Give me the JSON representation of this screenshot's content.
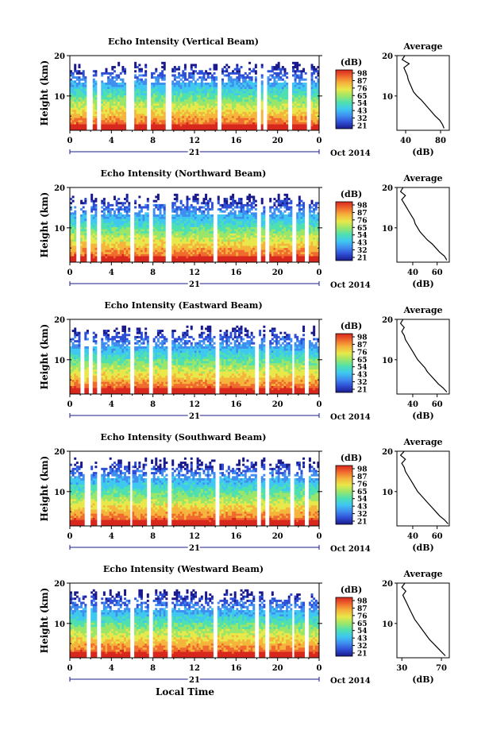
{
  "colors": {
    "axes": "#000000",
    "background": "#ffffff",
    "gap": "#ffffff",
    "profile_line": "#000000"
  },
  "colormap": [
    "#1a1a8c",
    "#2f4fd6",
    "#3f8ef0",
    "#3fc8f0",
    "#4fe0b0",
    "#9ae66a",
    "#e8e84a",
    "#f5b43c",
    "#f06a2e",
    "#d8281e"
  ],
  "chart_data": [
    {
      "type": "heatmap",
      "title": "Echo Intensity (Vertical Beam)",
      "ylabel": "Height (km)",
      "x_ticks": [
        "0",
        "4",
        "8",
        "12",
        "16",
        "20",
        "0"
      ],
      "date_label": "21",
      "date_suffix": "Oct 2014",
      "ylim": [
        1.5,
        20
      ],
      "y_ticks": [
        "20",
        "10"
      ],
      "colorbar": {
        "label": "(dB)",
        "ticks": [
          "98",
          "87",
          "76",
          "65",
          "54",
          "43",
          "32",
          "21"
        ]
      },
      "average": {
        "title": "Average",
        "xlabel": "(dB)",
        "x_ticks": [
          "40",
          "80"
        ],
        "xlim": [
          30,
          90
        ],
        "y_ticks": [
          "20",
          "10"
        ],
        "profile": [
          [
            84,
            2
          ],
          [
            82,
            3
          ],
          [
            79,
            4
          ],
          [
            74,
            5
          ],
          [
            70,
            6
          ],
          [
            66,
            7
          ],
          [
            62,
            8
          ],
          [
            58,
            9
          ],
          [
            53,
            10
          ],
          [
            49,
            11
          ],
          [
            47,
            12
          ],
          [
            45,
            13
          ],
          [
            43,
            14
          ],
          [
            42,
            15
          ],
          [
            40,
            16
          ],
          [
            38,
            17
          ],
          [
            44,
            18
          ],
          [
            36,
            19
          ],
          [
            39,
            20
          ]
        ]
      },
      "gaps": [
        [
          1.6,
          2.3
        ],
        [
          2.7,
          3.1
        ],
        [
          5.5,
          6.2
        ],
        [
          7.5,
          7.8
        ],
        [
          9.3,
          9.7
        ],
        [
          14.2,
          14.5
        ],
        [
          18.1,
          18.4
        ],
        [
          18.7,
          19.0
        ],
        [
          21.0,
          21.3
        ],
        [
          22.8,
          23.2
        ]
      ]
    },
    {
      "type": "heatmap",
      "title": "Echo Intensity (Northward Beam)",
      "ylabel": "Height (km)",
      "x_ticks": [
        "0",
        "4",
        "8",
        "12",
        "16",
        "20",
        "0"
      ],
      "date_label": "21",
      "date_suffix": "Oct 2014",
      "ylim": [
        1.5,
        20
      ],
      "y_ticks": [
        "20",
        "10"
      ],
      "colorbar": {
        "label": "(dB)",
        "ticks": [
          "98",
          "87",
          "76",
          "65",
          "54",
          "43",
          "32",
          "21"
        ]
      },
      "average": {
        "title": "Average",
        "xlabel": "(dB)",
        "x_ticks": [
          "40",
          "60"
        ],
        "xlim": [
          27,
          70
        ],
        "y_ticks": [
          "20",
          "10"
        ],
        "profile": [
          [
            68,
            2
          ],
          [
            66,
            3
          ],
          [
            62,
            4
          ],
          [
            59,
            5
          ],
          [
            56,
            6
          ],
          [
            52,
            7
          ],
          [
            49,
            8
          ],
          [
            46,
            9
          ],
          [
            44,
            10
          ],
          [
            42,
            11
          ],
          [
            41,
            12
          ],
          [
            39,
            13
          ],
          [
            37,
            14
          ],
          [
            35,
            15
          ],
          [
            33,
            16
          ],
          [
            31,
            17
          ],
          [
            34,
            18
          ],
          [
            30,
            19
          ],
          [
            32,
            20
          ]
        ]
      },
      "gaps": [
        [
          0.7,
          1.0
        ],
        [
          1.6,
          2.0
        ],
        [
          2.6,
          3.0
        ],
        [
          5.8,
          6.1
        ],
        [
          7.6,
          7.9
        ],
        [
          9.3,
          9.7
        ],
        [
          13.9,
          14.2
        ],
        [
          18.0,
          18.3
        ],
        [
          18.9,
          19.1
        ],
        [
          21.4,
          21.7
        ],
        [
          22.6,
          23.0
        ]
      ]
    },
    {
      "type": "heatmap",
      "title": "Echo Intensity (Eastward Beam)",
      "ylabel": "Height (km)",
      "x_ticks": [
        "0",
        "4",
        "8",
        "12",
        "16",
        "20",
        "0"
      ],
      "date_label": "21",
      "date_suffix": "Oct 2014",
      "ylim": [
        1.5,
        20
      ],
      "y_ticks": [
        "20",
        "10"
      ],
      "colorbar": {
        "label": "(dB)",
        "ticks": [
          "98",
          "87",
          "76",
          "65",
          "54",
          "43",
          "32",
          "21"
        ]
      },
      "average": {
        "title": "Average",
        "xlabel": "(dB)",
        "x_ticks": [
          "40",
          "60"
        ],
        "xlim": [
          27,
          70
        ],
        "y_ticks": [
          "20",
          "10"
        ],
        "profile": [
          [
            68,
            2
          ],
          [
            65,
            3
          ],
          [
            61,
            4
          ],
          [
            58,
            5
          ],
          [
            55,
            6
          ],
          [
            52,
            7
          ],
          [
            50,
            8
          ],
          [
            47,
            9
          ],
          [
            44,
            10
          ],
          [
            42,
            11
          ],
          [
            40,
            12
          ],
          [
            38,
            13
          ],
          [
            36,
            14
          ],
          [
            34,
            15
          ],
          [
            33,
            16
          ],
          [
            31,
            17
          ],
          [
            33,
            18
          ],
          [
            30,
            19
          ],
          [
            32,
            20
          ]
        ]
      },
      "gaps": [
        [
          1.0,
          1.3
        ],
        [
          1.8,
          2.1
        ],
        [
          2.7,
          3.0
        ],
        [
          5.8,
          6.1
        ],
        [
          7.6,
          7.9
        ],
        [
          9.5,
          9.8
        ],
        [
          14.0,
          14.3
        ],
        [
          17.9,
          18.2
        ],
        [
          18.8,
          19.1
        ],
        [
          21.3,
          21.6
        ],
        [
          22.7,
          23.0
        ]
      ]
    },
    {
      "type": "heatmap",
      "title": "Echo Intensity (Southward Beam)",
      "ylabel": "Height (km)",
      "x_ticks": [
        "0",
        "4",
        "8",
        "12",
        "16",
        "20",
        "0"
      ],
      "date_label": "21",
      "date_suffix": "Oct 2014",
      "ylim": [
        1.5,
        20
      ],
      "y_ticks": [
        "20",
        "10"
      ],
      "colorbar": {
        "label": "(dB)",
        "ticks": [
          "98",
          "87",
          "76",
          "65",
          "54",
          "43",
          "32",
          "21"
        ]
      },
      "average": {
        "title": "Average",
        "xlabel": "(dB)",
        "x_ticks": [
          "40",
          "60"
        ],
        "xlim": [
          27,
          70
        ],
        "y_ticks": [
          "20",
          "10"
        ],
        "profile": [
          [
            69,
            2
          ],
          [
            66,
            3
          ],
          [
            62,
            4
          ],
          [
            59,
            5
          ],
          [
            56,
            6
          ],
          [
            53,
            7
          ],
          [
            50,
            8
          ],
          [
            47,
            9
          ],
          [
            44,
            10
          ],
          [
            42,
            11
          ],
          [
            40,
            12
          ],
          [
            38,
            13
          ],
          [
            36,
            14
          ],
          [
            34,
            15
          ],
          [
            33,
            16
          ],
          [
            31,
            17
          ],
          [
            34,
            18
          ],
          [
            30,
            19
          ],
          [
            33,
            20
          ]
        ]
      },
      "gaps": [
        [
          1.5,
          1.9
        ],
        [
          2.6,
          3.0
        ],
        [
          5.7,
          6.0
        ],
        [
          7.5,
          7.8
        ],
        [
          9.4,
          9.7
        ],
        [
          14.1,
          14.4
        ],
        [
          18.0,
          18.3
        ],
        [
          18.9,
          19.2
        ],
        [
          21.2,
          21.5
        ],
        [
          22.7,
          23.0
        ]
      ]
    },
    {
      "type": "heatmap",
      "title": "Echo Intensity (Westward Beam)",
      "ylabel": "Height (km)",
      "x_ticks": [
        "0",
        "4",
        "8",
        "12",
        "16",
        "20",
        "0"
      ],
      "date_label": "21",
      "date_suffix": "Oct 2014",
      "xlabel": "Local Time",
      "ylim": [
        1.5,
        20
      ],
      "y_ticks": [
        "20",
        "10"
      ],
      "colorbar": {
        "label": "(dB)",
        "ticks": [
          "98",
          "87",
          "76",
          "65",
          "54",
          "43",
          "32",
          "21"
        ]
      },
      "average": {
        "title": "Average",
        "xlabel": "(dB)",
        "x_ticks": [
          "30",
          "70"
        ],
        "xlim": [
          25,
          78
        ],
        "y_ticks": [
          "20",
          "10"
        ],
        "profile": [
          [
            74,
            2
          ],
          [
            70,
            3
          ],
          [
            66,
            4
          ],
          [
            62,
            5
          ],
          [
            58,
            6
          ],
          [
            55,
            7
          ],
          [
            52,
            8
          ],
          [
            49,
            9
          ],
          [
            46,
            10
          ],
          [
            43,
            11
          ],
          [
            41,
            12
          ],
          [
            39,
            13
          ],
          [
            37,
            14
          ],
          [
            35,
            15
          ],
          [
            33,
            16
          ],
          [
            31,
            17
          ],
          [
            34,
            18
          ],
          [
            30,
            19
          ],
          [
            33,
            20
          ]
        ]
      },
      "gaps": [
        [
          1.6,
          1.9
        ],
        [
          2.6,
          3.0
        ],
        [
          5.8,
          6.1
        ],
        [
          7.6,
          7.9
        ],
        [
          9.4,
          9.7
        ],
        [
          13.9,
          14.2
        ],
        [
          17.9,
          18.2
        ],
        [
          18.8,
          19.1
        ],
        [
          21.3,
          21.6
        ],
        [
          22.6,
          23.0
        ]
      ]
    }
  ]
}
